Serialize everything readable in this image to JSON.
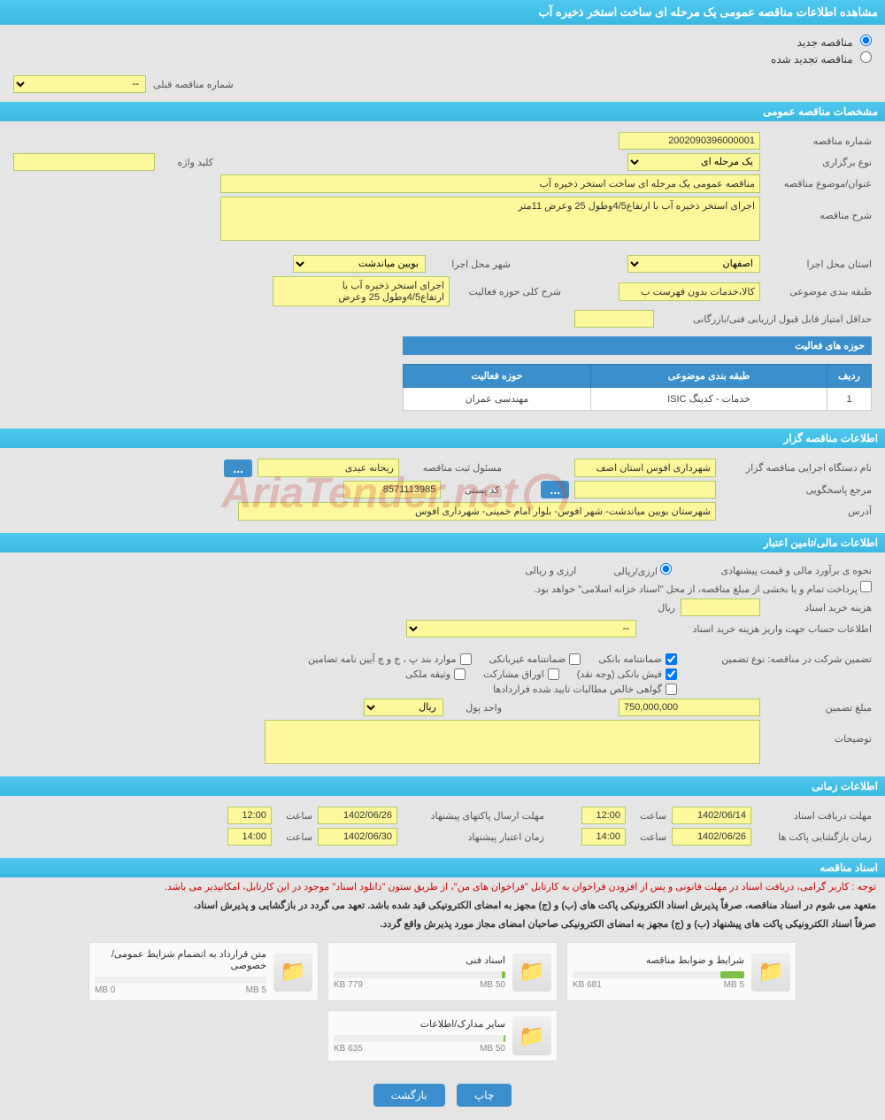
{
  "pageTitle": "مشاهده اطلاعات مناقصه عمومی یک مرحله ای ساخت استخر ذخیره آب",
  "radios": {
    "new": "مناقصه جدید",
    "renewed": "مناقصه تجدید شده"
  },
  "prevTender": {
    "label": "شماره مناقصه قبلی",
    "value": "--"
  },
  "sections": {
    "general": "مشخصات مناقصه عمومی",
    "organizer": "اطلاعات مناقصه گزار",
    "financial": "اطلاعات مالی/تامین اعتبار",
    "timing": "اطلاعات زمانی",
    "documents": "اسناد مناقصه"
  },
  "general": {
    "tenderNoLabel": "شماره مناقصه",
    "tenderNo": "2002090396000001",
    "typeLabel": "نوع برگزاری",
    "type": "یک مرحله ای",
    "keywordLabel": "کلید واژه",
    "keyword": "",
    "subjectLabel": "عنوان/موضوع مناقصه",
    "subject": "مناقصه عمومی یک مرحله ای ساخت استخر ذخیره آب",
    "descLabel": "شرح مناقصه",
    "desc": "اجرای استخر ذخیره آب  با ارتفاع4/5وطول 25 وعرض 11متر",
    "provinceLabel": "استان محل اجرا",
    "province": "اصفهان",
    "cityLabel": "شهر محل اجرا",
    "city": "بویین میاندشت",
    "categoryLabel": "طبقه بندی موضوعی",
    "category": "کالا،خدمات بدون فهرست ب",
    "activityDescLabel": "شرح کلی حوزه فعالیت",
    "activityDesc": "اجرای استخر ذخیره آب  با ارتفاع4/5وطول 25 وعرض",
    "minScoreLabel": "حداقل امتیاز قابل قبول ارزیابی فنی/بازرگانی",
    "minScore": ""
  },
  "activityTable": {
    "title": "حوزه های فعالیت",
    "cols": [
      "ردیف",
      "طبقه بندی موضوعی",
      "حوزه فعالیت"
    ],
    "rows": [
      [
        "1",
        "خدمات - کدینگ ISIC",
        "مهندسی عمران"
      ]
    ]
  },
  "organizer": {
    "orgLabel": "نام دستگاه اجرایی مناقصه گزار",
    "org": "شهرداری افوس استان اصف",
    "responsibleLabel": "مسئول ثبت مناقصه",
    "responsible": "ریحانه عیدی",
    "refLabel": "مرجع پاسخگویی",
    "ref": "",
    "postalLabel": "کد پستی",
    "postal": "8571113985",
    "addressLabel": "آدرس",
    "address": "شهرستان بویین میاندشت- شهر افوس- بلوار امام خمینی- شهرداری افوس",
    "dotsBtn": "..."
  },
  "financial": {
    "methodLabel": "نحوه ی برآورد مالی و قیمت پیشنهادی",
    "methodOption": "ارزی/ریالی",
    "methodSuffix": "ارزی و ریالی",
    "paymentNote": "پرداخت تمام و یا بخشی از مبلغ مناقصه، از محل \"اسناد خزانه اسلامی\" خواهد بود.",
    "feeLabel": "هزینه خرید اسناد",
    "fee": "",
    "feeUnit": "ریال",
    "accountLabel": "اطلاعات حساب جهت واریز هزینه خرید اسناد",
    "account": "--",
    "guaranteeTypeLabel": "تضمین شرکت در مناقصه:   نوع تضمین",
    "chk1": "ضمانتنامه بانکی",
    "chk2": "ضمانتنامه غیربانکی",
    "chk3": "موارد بند پ ، ج و چ آیین نامه تضامین",
    "chk4": "فیش بانکی (وجه نقد)",
    "chk5": "اوراق مشارکت",
    "chk6": "وثیقه ملکی",
    "chk7": "گواهی خالص مطالبات تایید شده قراردادها",
    "amountLabel": "مبلغ تضمین",
    "amount": "750,000,000",
    "unitLabel": "واحد پول",
    "unit": "ریال",
    "notesLabel": "توضیحات",
    "notes": ""
  },
  "timing": {
    "receive": "مهلت دریافت اسناد",
    "receiveDate": "1402/06/14",
    "receiveTime": "12:00",
    "submit": "مهلت ارسال پاکتهای پیشنهاد",
    "submitDate": "1402/06/26",
    "submitTime": "12:00",
    "open": "زمان بازگشایی پاکت ها",
    "openDate": "1402/06/26",
    "openTime": "14:00",
    "validity": "زمان اعتبار پیشنهاد",
    "validityDate": "1402/06/30",
    "validityTime": "14:00",
    "timeLabel": "ساعت"
  },
  "documents": {
    "notice": "توجه : کاربر گرامی، دریافت اسناد در مهلت قانونی و پس از افزودن فراخوان به کارتابل \"فراخوان های من\"، از طریق ستون \"دانلود اسناد\" موجود در این کارتابل، امکانپذیر می باشد.",
    "bold1": "متعهد می شوم در اسناد مناقصه، صرفاً پذیرش اسناد الکترونیکی پاکت های (ب) و (ج) مجهز به امضای الکترونیکی قید شده باشد. تعهد می گردد در بازگشایی و پذیرش اسناد،",
    "bold2": "صرفاً اسناد الکترونیکی پاکت های پیشنهاد (ب) و (ج) مجهز به امضای الکترونیکی صاحبان امضای مجاز مورد پذیرش واقع گردد.",
    "docs": [
      {
        "title": "شرایط و ضوابط مناقصه",
        "used": "681 KB",
        "max": "5 MB",
        "pct": 14
      },
      {
        "title": "اسناد فنی",
        "used": "779 KB",
        "max": "50 MB",
        "pct": 2
      },
      {
        "title": "متن قرارداد به انضمام شرایط عمومی/خصوصی",
        "used": "0 MB",
        "max": "5 MB",
        "pct": 0
      },
      {
        "title": "سایر مدارک/اطلاعات",
        "used": "635 KB",
        "max": "50 MB",
        "pct": 1
      }
    ]
  },
  "buttons": {
    "print": "چاپ",
    "back": "بازگشت"
  },
  "watermark": "AriaTender.net"
}
